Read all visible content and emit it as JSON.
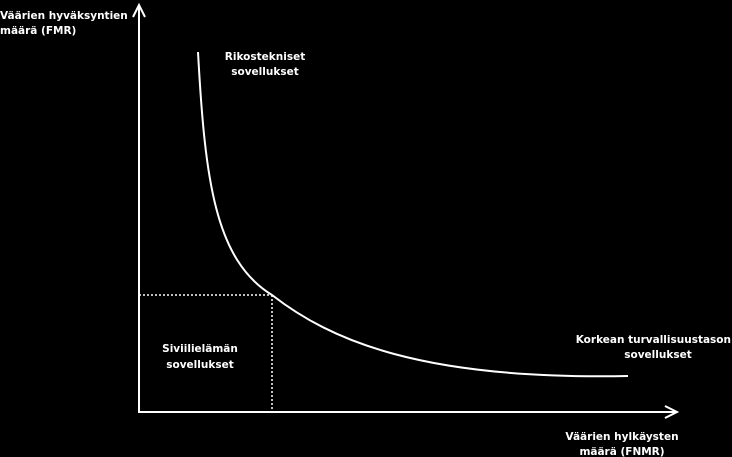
{
  "y_axis_label": [
    "Väärien hyväksyntien",
    "määrä (FMR)"
  ],
  "x_axis_label": [
    "Väärien hylkäysten",
    "määrä (FNMR)"
  ],
  "regions": [
    {
      "label": [
        "Rikostekniset",
        "sovellukset"
      ]
    },
    {
      "label": [
        "Siviilielämän",
        "sovellukset"
      ]
    },
    {
      "label": [
        "Korkean turvallisuustason",
        "sovellukset"
      ]
    }
  ]
}
